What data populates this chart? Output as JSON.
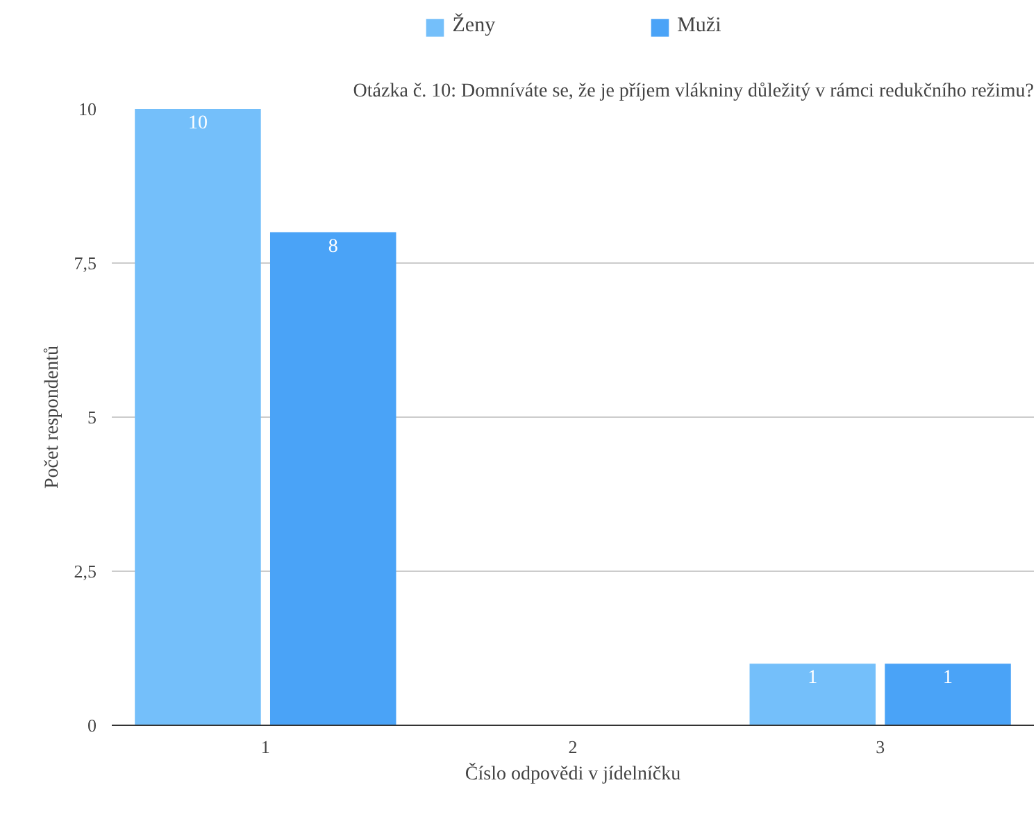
{
  "chart_data": {
    "type": "bar",
    "title": "Otázka č. 10: Domníváte se, že je příjem vlákniny důležitý v rámci redukčního režimu?",
    "xlabel": "Číslo odpovědi v jídelníčku",
    "ylabel": "Počet respondentů",
    "categories": [
      "1",
      "2",
      "3"
    ],
    "series": [
      {
        "name": "Ženy",
        "color": "#74bffa",
        "values": [
          10,
          0,
          1
        ],
        "value_labels": [
          "10",
          null,
          "1"
        ]
      },
      {
        "name": "Muži",
        "color": "#4aa3f7",
        "values": [
          8,
          0,
          1
        ],
        "value_labels": [
          "8",
          null,
          "1"
        ]
      }
    ],
    "ylim": [
      0,
      10
    ],
    "yticks": [
      0,
      {
        "value": 2.5,
        "label": "2,5"
      },
      5,
      {
        "value": 7.5,
        "label": "7,5"
      },
      10
    ],
    "grid": "y",
    "legend": "top"
  }
}
